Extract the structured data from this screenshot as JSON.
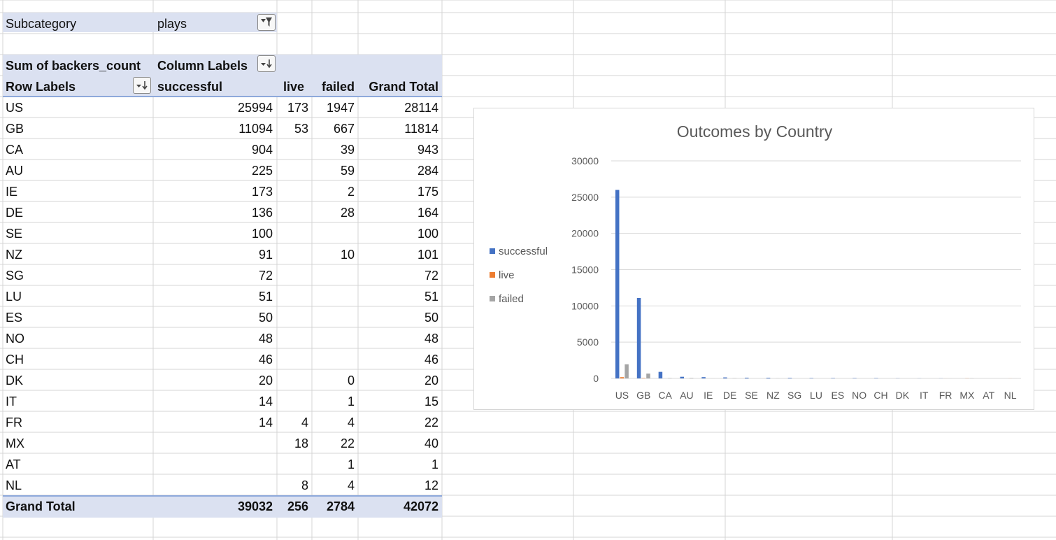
{
  "filter": {
    "label": "Subcategory",
    "value": "plays"
  },
  "pivot": {
    "values_label": "Sum of backers_count",
    "column_labels_header": "Column Labels",
    "row_labels_header": "Row Labels",
    "columns": [
      "successful",
      "live",
      "failed",
      "Grand Total"
    ],
    "rows": [
      {
        "label": "US",
        "cells": [
          "25994",
          "173",
          "1947",
          "28114"
        ]
      },
      {
        "label": "GB",
        "cells": [
          "11094",
          "53",
          "667",
          "11814"
        ]
      },
      {
        "label": "CA",
        "cells": [
          "904",
          "",
          "39",
          "943"
        ]
      },
      {
        "label": "AU",
        "cells": [
          "225",
          "",
          "59",
          "284"
        ]
      },
      {
        "label": "IE",
        "cells": [
          "173",
          "",
          "2",
          "175"
        ]
      },
      {
        "label": "DE",
        "cells": [
          "136",
          "",
          "28",
          "164"
        ]
      },
      {
        "label": "SE",
        "cells": [
          "100",
          "",
          "",
          "100"
        ]
      },
      {
        "label": "NZ",
        "cells": [
          "91",
          "",
          "10",
          "101"
        ]
      },
      {
        "label": "SG",
        "cells": [
          "72",
          "",
          "",
          "72"
        ]
      },
      {
        "label": "LU",
        "cells": [
          "51",
          "",
          "",
          "51"
        ]
      },
      {
        "label": "ES",
        "cells": [
          "50",
          "",
          "",
          "50"
        ]
      },
      {
        "label": "NO",
        "cells": [
          "48",
          "",
          "",
          "48"
        ]
      },
      {
        "label": "CH",
        "cells": [
          "46",
          "",
          "",
          "46"
        ]
      },
      {
        "label": "DK",
        "cells": [
          "20",
          "",
          "0",
          "20"
        ]
      },
      {
        "label": "IT",
        "cells": [
          "14",
          "",
          "1",
          "15"
        ]
      },
      {
        "label": "FR",
        "cells": [
          "14",
          "4",
          "4",
          "22"
        ]
      },
      {
        "label": "MX",
        "cells": [
          "",
          "18",
          "22",
          "40"
        ]
      },
      {
        "label": "AT",
        "cells": [
          "",
          "",
          "1",
          "1"
        ]
      },
      {
        "label": "NL",
        "cells": [
          "",
          "8",
          "4",
          "12"
        ]
      }
    ],
    "grand_total": {
      "label": "Grand Total",
      "cells": [
        "39032",
        "256",
        "2784",
        "42072"
      ]
    }
  },
  "chart_data": {
    "type": "bar",
    "title": "Outcomes by Country",
    "categories": [
      "US",
      "GB",
      "CA",
      "AU",
      "IE",
      "DE",
      "SE",
      "NZ",
      "SG",
      "LU",
      "ES",
      "NO",
      "CH",
      "DK",
      "IT",
      "FR",
      "MX",
      "AT",
      "NL"
    ],
    "series": [
      {
        "name": "successful",
        "color": "#4472c4",
        "values": [
          25994,
          11094,
          904,
          225,
          173,
          136,
          100,
          91,
          72,
          51,
          50,
          48,
          46,
          20,
          14,
          14,
          0,
          0,
          0
        ]
      },
      {
        "name": "live",
        "color": "#ed7d31",
        "values": [
          173,
          53,
          0,
          0,
          0,
          0,
          0,
          0,
          0,
          0,
          0,
          0,
          0,
          0,
          0,
          4,
          18,
          0,
          8
        ]
      },
      {
        "name": "failed",
        "color": "#a5a5a5",
        "values": [
          1947,
          667,
          39,
          59,
          2,
          28,
          0,
          10,
          0,
          0,
          0,
          0,
          0,
          0,
          1,
          4,
          22,
          1,
          4
        ]
      }
    ],
    "ylim": [
      0,
      30000
    ],
    "yticks": [
      0,
      5000,
      10000,
      15000,
      20000,
      25000,
      30000
    ],
    "legend_position": "left",
    "grid": true
  }
}
